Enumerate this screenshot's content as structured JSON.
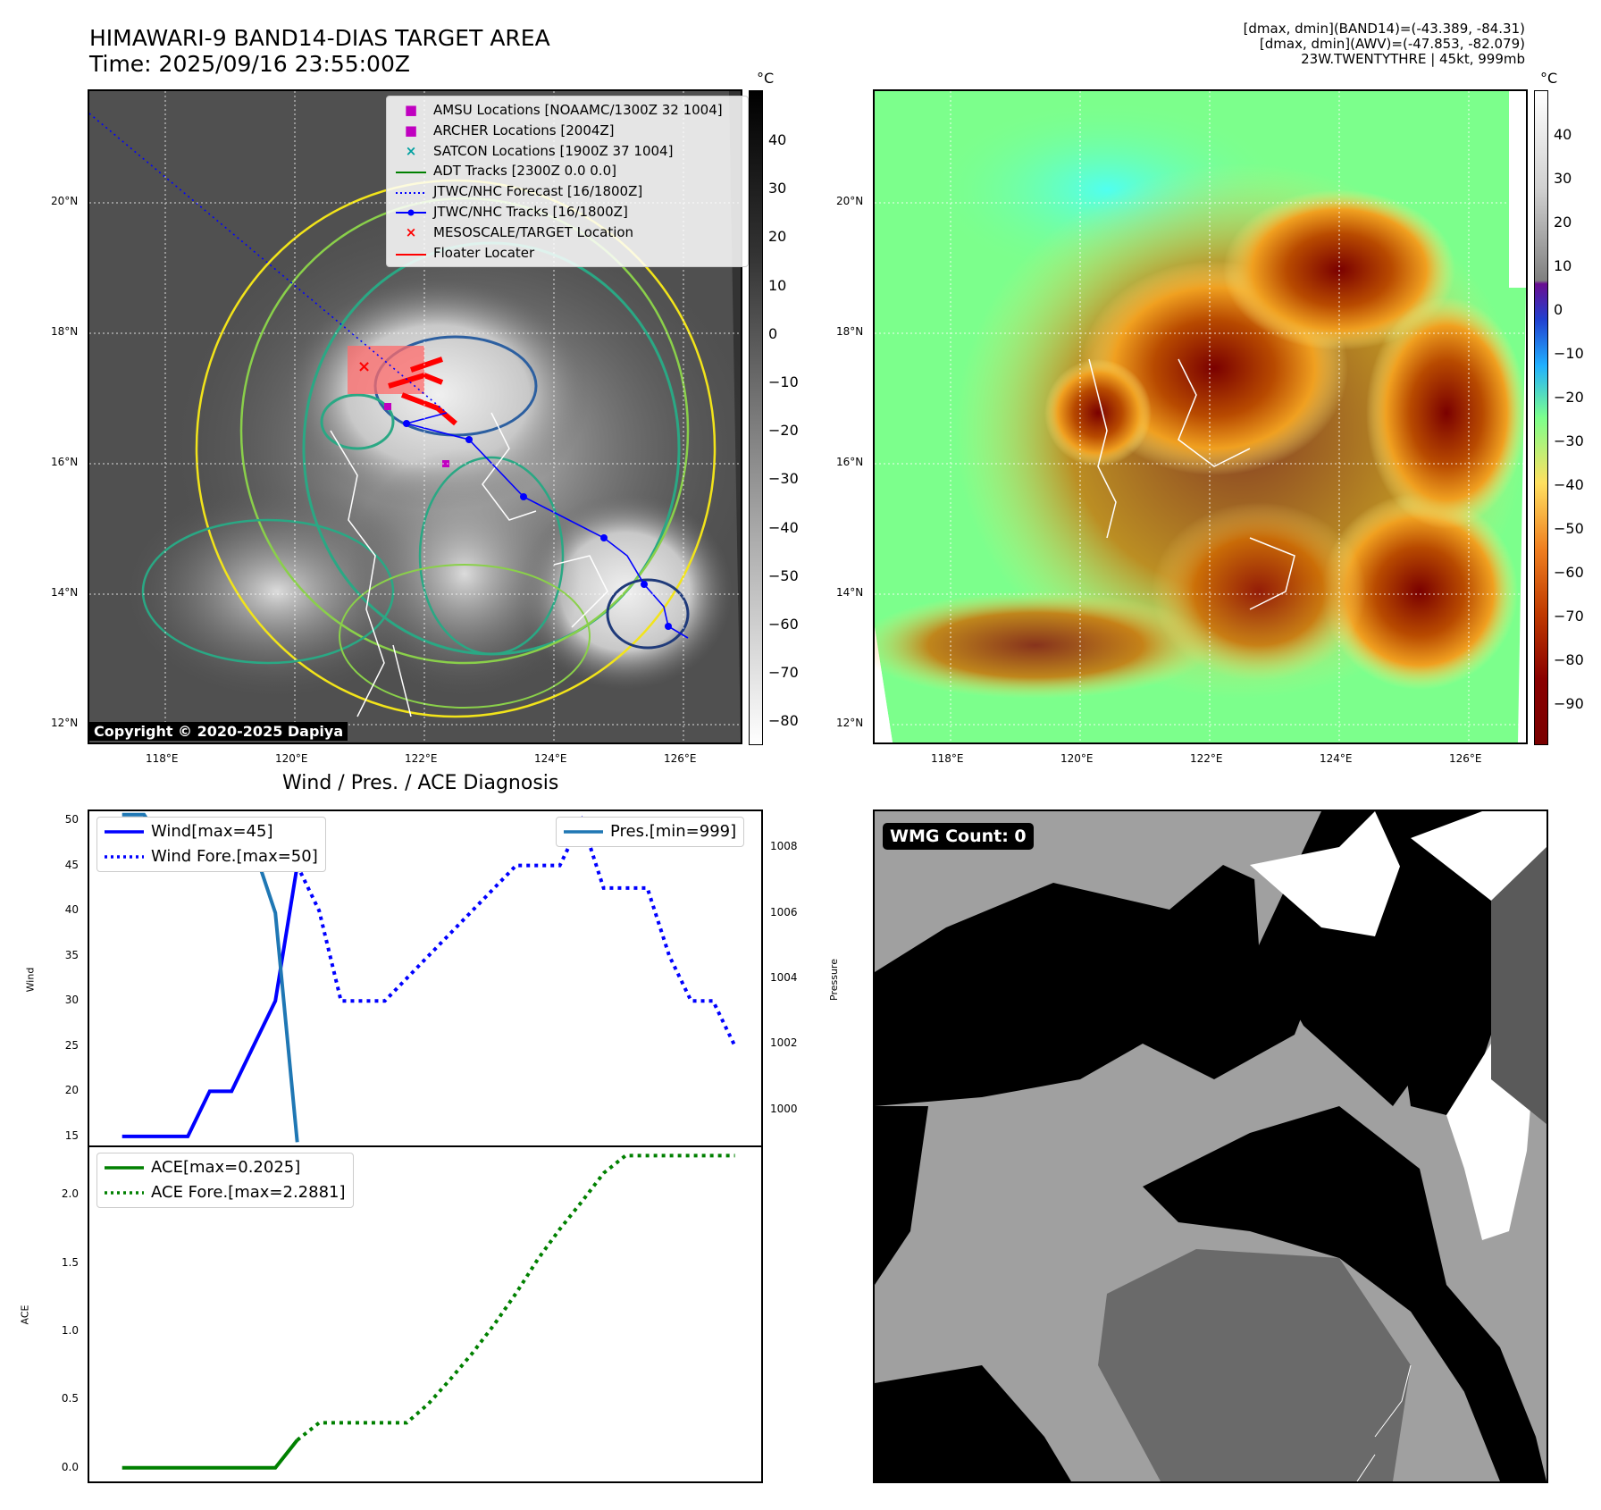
{
  "header": {
    "title_line1": "HIMAWARI-9 BAND14-DIAS TARGET AREA",
    "title_line2": "Time: 2025/09/16 23:55:00Z",
    "info_line1": "[dmax, dmin](BAND14)=(-43.389, -84.31)",
    "info_line2": "[dmax, dmin](AWV)=(-47.853, -82.079)",
    "info_line3": "23W.TWENTYTHRE | 45kt, 999mb"
  },
  "map": {
    "lat_labels": [
      "20°N",
      "18°N",
      "16°N",
      "14°N",
      "12°N"
    ],
    "lon_labels": [
      "118°E",
      "120°E",
      "122°E",
      "124°E",
      "126°E"
    ],
    "copyright": "Copyright © 2020-2025 Dapiya"
  },
  "colorbar_left": {
    "unit": "°C",
    "ticks": [
      "40",
      "30",
      "20",
      "10",
      "0",
      "−10",
      "−20",
      "−30",
      "−40",
      "−50",
      "−60",
      "−70",
      "−80"
    ]
  },
  "colorbar_right": {
    "unit": "°C",
    "ticks": [
      "40",
      "30",
      "20",
      "10",
      "0",
      "−10",
      "−20",
      "−30",
      "−40",
      "−50",
      "−60",
      "−70",
      "−80",
      "−90"
    ]
  },
  "map_legend": [
    {
      "label": "AMSU Locations [NOAAMC/1300Z 32 1004]",
      "symbol": "square",
      "color": "#c000c0"
    },
    {
      "label": "ARCHER Locations [2004Z]",
      "symbol": "square",
      "color": "#c000c0"
    },
    {
      "label": "SATCON Locations [1900Z 37 1004]",
      "symbol": "x",
      "color": "#00a0a0"
    },
    {
      "label": "ADT Tracks [2300Z 0.0 0.0]",
      "symbol": "line",
      "color": "#008000"
    },
    {
      "label": "JTWC/NHC Forecast [16/1800Z]",
      "symbol": "dotted",
      "color": "#0000ff"
    },
    {
      "label": "JTWC/NHC Tracks [16/1800Z]",
      "symbol": "line-dot",
      "color": "#0000ff"
    },
    {
      "label": "MESOSCALE/TARGET Location",
      "symbol": "x",
      "color": "#ff0000"
    },
    {
      "label": "Floater Locater",
      "symbol": "line",
      "color": "#ff0000"
    }
  ],
  "diag": {
    "title": "Wind / Pres. / ACE Diagnosis",
    "wind_legend": "Wind[max=45]",
    "wind_fore_legend": "Wind Fore.[max=50]",
    "pres_legend": "Pres.[min=999]",
    "ace_legend": "ACE[max=0.2025]",
    "ace_fore_legend": "ACE Fore.[max=2.2881]",
    "wind_ylabel": "Wind",
    "pres_ylabel": "Pressure",
    "ace_ylabel": "ACE",
    "wind_ticks": [
      "50",
      "45",
      "40",
      "35",
      "30",
      "25",
      "20",
      "15"
    ],
    "pres_ticks": [
      "1008",
      "1006",
      "1004",
      "1002",
      "1000"
    ],
    "ace_ticks": [
      "2.0",
      "1.5",
      "1.0",
      "0.5",
      "0.0"
    ]
  },
  "wmg": {
    "label": "WMG Count: 0"
  },
  "chart_data": [
    {
      "type": "line",
      "title": "Wind / Pres. / ACE Diagnosis",
      "ylabel": "Wind",
      "ylim": [
        14,
        51
      ],
      "x": [
        0,
        1,
        2,
        3,
        4,
        5,
        6,
        7,
        8,
        9,
        10,
        11,
        12,
        13,
        14,
        15,
        16,
        17,
        18,
        19,
        20,
        21,
        22,
        23,
        24,
        25,
        26,
        27,
        28
      ],
      "series": [
        {
          "name": "Wind[max=45]",
          "x": [
            0,
            1,
            2,
            3,
            4,
            5,
            6,
            7,
            8
          ],
          "values": [
            15,
            15,
            15,
            15,
            20,
            20,
            25,
            30,
            45
          ],
          "color": "#0000ff",
          "style": "solid"
        },
        {
          "name": "Wind Fore.[max=50]",
          "x": [
            8,
            9,
            10,
            11,
            12,
            13,
            14,
            15,
            16,
            17,
            18,
            19,
            20,
            21,
            22,
            23,
            24,
            25,
            26,
            27,
            28
          ],
          "values": [
            45,
            40,
            30,
            30,
            30,
            32.5,
            35,
            37.5,
            40,
            42.5,
            45,
            45,
            45,
            50,
            42.5,
            42.5,
            42.5,
            35,
            30,
            30,
            25
          ],
          "color": "#0000ff",
          "style": "dotted"
        },
        {
          "name": "Pres.[min=999]",
          "axis": "right",
          "ylim": [
            998.9,
            1009.1
          ],
          "x": [
            0,
            1,
            2,
            3,
            4,
            5,
            6,
            7,
            8
          ],
          "values": [
            1009,
            1009,
            1008,
            1008,
            1008,
            1008,
            1008,
            1006,
            999
          ],
          "color": "#1f77b4",
          "style": "solid"
        }
      ]
    },
    {
      "type": "line",
      "ylabel": "ACE",
      "ylim": [
        -0.1,
        2.35
      ],
      "series": [
        {
          "name": "ACE[max=0.2025]",
          "x": [
            0,
            1,
            2,
            3,
            4,
            5,
            6,
            7,
            8
          ],
          "values": [
            0,
            0,
            0,
            0,
            0,
            0,
            0,
            0,
            0.2025
          ],
          "color": "#008000",
          "style": "solid"
        },
        {
          "name": "ACE Fore.[max=2.2881]",
          "x": [
            8,
            9,
            10,
            11,
            12,
            13,
            14,
            15,
            16,
            17,
            18,
            19,
            20,
            21,
            22,
            23,
            24,
            25,
            26,
            27,
            28
          ],
          "values": [
            0.2025,
            0.33,
            0.33,
            0.33,
            0.33,
            0.33,
            0.47,
            0.65,
            0.84,
            1.05,
            1.28,
            1.53,
            1.75,
            1.95,
            2.16,
            2.2881,
            2.2881,
            2.2881,
            2.2881,
            2.2881,
            2.2881
          ],
          "color": "#008000",
          "style": "dotted"
        }
      ]
    }
  ]
}
